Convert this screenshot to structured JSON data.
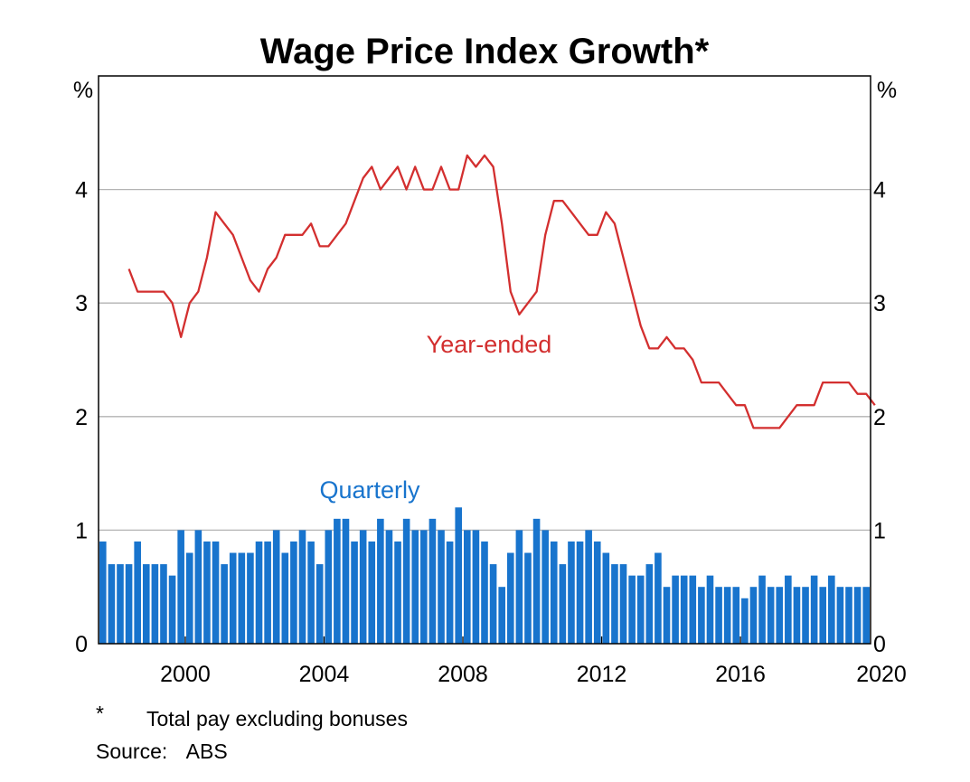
{
  "chart_data": {
    "type": "bar+line",
    "title": "Wage Price Index Growth*",
    "left_unit": "%",
    "right_unit": "%",
    "ylim": [
      0,
      5
    ],
    "yticks": [
      0,
      1,
      2,
      3,
      4
    ],
    "xlim": [
      1997.5,
      2019.75
    ],
    "xticks": [
      "2000",
      "2004",
      "2008",
      "2012",
      "2016",
      "2020"
    ],
    "xtick_values": [
      2000,
      2004,
      2008,
      2012,
      2016,
      2020
    ],
    "grid": true,
    "quarterly": {
      "name": "Quarterly",
      "color": "#1874CD",
      "start": 1997.5,
      "step": 0.25,
      "values": [
        0.9,
        0.7,
        0.7,
        0.7,
        0.9,
        0.7,
        0.7,
        0.7,
        0.6,
        1.0,
        0.8,
        1.0,
        0.9,
        0.9,
        0.7,
        0.8,
        0.8,
        0.8,
        0.9,
        0.9,
        1.0,
        0.8,
        0.9,
        1.0,
        0.9,
        0.7,
        1.0,
        1.1,
        1.1,
        0.9,
        1.0,
        0.9,
        1.1,
        1.0,
        0.9,
        1.1,
        1.0,
        1.0,
        1.1,
        1.0,
        0.9,
        1.2,
        1.0,
        1.0,
        0.9,
        0.7,
        0.5,
        0.8,
        1.0,
        0.8,
        1.1,
        1.0,
        0.9,
        0.7,
        0.9,
        0.9,
        1.0,
        0.9,
        0.8,
        0.7,
        0.7,
        0.6,
        0.6,
        0.7,
        0.8,
        0.5,
        0.6,
        0.6,
        0.6,
        0.5,
        0.6,
        0.5,
        0.5,
        0.5,
        0.4,
        0.5,
        0.6,
        0.5,
        0.5,
        0.6,
        0.5,
        0.5,
        0.6,
        0.5,
        0.6,
        0.5,
        0.5,
        0.5,
        0.5
      ]
    },
    "year_ended": {
      "name": "Year-ended",
      "color": "#D32F2F",
      "start": 1998.25,
      "step": 0.25,
      "values": [
        3.3,
        3.1,
        3.1,
        3.1,
        3.1,
        3.0,
        2.7,
        3.0,
        3.1,
        3.4,
        3.8,
        3.7,
        3.6,
        3.4,
        3.2,
        3.1,
        3.3,
        3.4,
        3.6,
        3.6,
        3.6,
        3.7,
        3.5,
        3.5,
        3.6,
        3.7,
        3.9,
        4.1,
        4.2,
        4.0,
        4.1,
        4.2,
        4.0,
        4.2,
        4.0,
        4.0,
        4.2,
        4.0,
        4.0,
        4.3,
        4.2,
        4.3,
        4.2,
        3.7,
        3.1,
        2.9,
        3.0,
        3.1,
        3.6,
        3.9,
        3.9,
        3.8,
        3.7,
        3.6,
        3.6,
        3.8,
        3.7,
        3.4,
        3.1,
        2.8,
        2.6,
        2.6,
        2.7,
        2.6,
        2.6,
        2.5,
        2.3,
        2.3,
        2.3,
        2.2,
        2.1,
        2.1,
        1.9,
        1.9,
        1.9,
        1.9,
        2.0,
        2.1,
        2.1,
        2.1,
        2.3,
        2.3,
        2.3,
        2.3,
        2.2,
        2.2,
        2.1
      ]
    }
  },
  "footnote": {
    "marker": "*",
    "text": "Total pay excluding bonuses"
  },
  "source": {
    "label": "Source:",
    "value": "ABS"
  }
}
